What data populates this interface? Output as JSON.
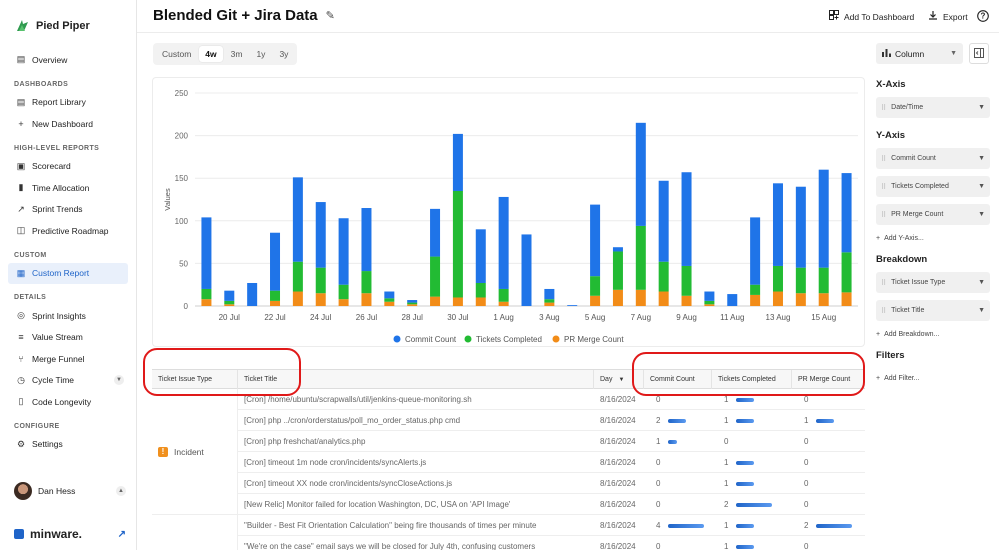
{
  "app": {
    "brand": "Pied Piper",
    "footer_brand": "minware."
  },
  "sidebar": {
    "items": [
      {
        "type": "item",
        "label": "Overview",
        "icon": "book-icon"
      },
      {
        "type": "section",
        "label": "DASHBOARDS"
      },
      {
        "type": "item",
        "label": "Report Library",
        "icon": "book-icon"
      },
      {
        "type": "item",
        "label": "New Dashboard",
        "icon": "plus-icon"
      },
      {
        "type": "section",
        "label": "HIGH-LEVEL REPORTS"
      },
      {
        "type": "item",
        "label": "Scorecard",
        "icon": "scorecard-icon"
      },
      {
        "type": "item",
        "label": "Time Allocation",
        "icon": "bar-chart-icon"
      },
      {
        "type": "item",
        "label": "Sprint Trends",
        "icon": "trend-icon"
      },
      {
        "type": "item",
        "label": "Predictive Roadmap",
        "icon": "roadmap-icon"
      },
      {
        "type": "section",
        "label": "CUSTOM"
      },
      {
        "type": "item",
        "label": "Custom Report",
        "icon": "table-icon",
        "active": true
      },
      {
        "type": "section",
        "label": "DETAILS"
      },
      {
        "type": "item",
        "label": "Sprint Insights",
        "icon": "sprint-icon"
      },
      {
        "type": "item",
        "label": "Value Stream",
        "icon": "value-stream-icon"
      },
      {
        "type": "item",
        "label": "Merge Funnel",
        "icon": "merge-icon"
      },
      {
        "type": "item",
        "label": "Cycle Time",
        "icon": "clock-icon",
        "expandable": true
      },
      {
        "type": "item",
        "label": "Code Longevity",
        "icon": "document-icon"
      },
      {
        "type": "section",
        "label": "CONFIGURE"
      },
      {
        "type": "item",
        "label": "Settings",
        "icon": "gear-icon"
      }
    ],
    "user": "Dan Hess"
  },
  "header": {
    "title": "Blended Git + Jira Data",
    "add_dashboard": "Add To Dashboard",
    "export": "Export"
  },
  "time_range": {
    "options": [
      "Custom",
      "4w",
      "3m",
      "1y",
      "3y"
    ],
    "selected": "4w"
  },
  "right_panel": {
    "viz_type": "Column",
    "xaxis_title": "X-Axis",
    "xaxis_fields": [
      "Date/Time"
    ],
    "yaxis_title": "Y-Axis",
    "yaxis_fields": [
      "Commit Count",
      "Tickets Completed",
      "PR Merge Count"
    ],
    "add_yaxis": "Add Y-Axis...",
    "breakdown_title": "Breakdown",
    "breakdown_fields": [
      "Ticket Issue Type",
      "Ticket Title"
    ],
    "add_breakdown": "Add Breakdown...",
    "filters_title": "Filters",
    "add_filter": "Add Filter..."
  },
  "chart_data": {
    "type": "bar",
    "stacked": true,
    "ylabel": "Values",
    "ylim": [
      0,
      250
    ],
    "yticks": [
      0,
      50,
      100,
      150,
      200,
      250
    ],
    "x_tick_labels": [
      "20 Jul",
      "22 Jul",
      "24 Jul",
      "26 Jul",
      "28 Jul",
      "30 Jul",
      "1 Aug",
      "3 Aug",
      "5 Aug",
      "7 Aug",
      "9 Aug",
      "11 Aug",
      "13 Aug",
      "15 Aug"
    ],
    "categories": [
      "19 Jul",
      "20 Jul",
      "21 Jul",
      "22 Jul",
      "23 Jul",
      "24 Jul",
      "25 Jul",
      "26 Jul",
      "27 Jul",
      "28 Jul",
      "29 Jul",
      "30 Jul",
      "31 Jul",
      "1 Aug",
      "2 Aug",
      "3 Aug",
      "4 Aug",
      "5 Aug",
      "6 Aug",
      "7 Aug",
      "8 Aug",
      "9 Aug",
      "10 Aug",
      "11 Aug",
      "12 Aug",
      "13 Aug",
      "14 Aug",
      "15 Aug",
      "16 Aug"
    ],
    "series": [
      {
        "name": "Commit Count",
        "color": "#1f74e8",
        "values": [
          84,
          12,
          27,
          68,
          99,
          77,
          78,
          74,
          8,
          3,
          56,
          67,
          63,
          108,
          84,
          12,
          1,
          84,
          5,
          121,
          95,
          110,
          11,
          14,
          79,
          97,
          95,
          115,
          93
        ]
      },
      {
        "name": "Tickets Completed",
        "color": "#22bb33",
        "values": [
          12,
          4,
          0,
          12,
          35,
          30,
          17,
          26,
          4,
          2,
          47,
          125,
          17,
          15,
          0,
          4,
          0,
          23,
          45,
          75,
          35,
          35,
          4,
          0,
          12,
          30,
          30,
          30,
          47
        ]
      },
      {
        "name": "PR Merge Count",
        "color": "#f28c18",
        "values": [
          8,
          2,
          0,
          6,
          17,
          15,
          8,
          15,
          5,
          2,
          11,
          10,
          10,
          5,
          0,
          4,
          0,
          12,
          19,
          19,
          17,
          12,
          2,
          0,
          13,
          17,
          15,
          15,
          16
        ]
      }
    ],
    "legend_position": "bottom"
  },
  "table": {
    "headers": [
      "Ticket Issue Type",
      "Ticket Title",
      "Day",
      "Commit Count",
      "Tickets Completed",
      "PR Merge Count"
    ],
    "group": "Incident",
    "rows": [
      {
        "title": "[Cron] /home/ubuntu/scrapwalls/util/jenkins-queue-monitoring.sh",
        "day": "8/16/2024",
        "commits": "0",
        "tickets": "1",
        "prs": "0",
        "cb": 0,
        "tb": 0.45,
        "pb": 0
      },
      {
        "title": "[Cron] php ../cron/orderstatus/poll_mo_order_status.php cmd",
        "day": "8/16/2024",
        "commits": "2",
        "tickets": "1",
        "prs": "1",
        "cb": 0.45,
        "tb": 0.45,
        "pb": 0.45
      },
      {
        "title": "[Cron] php freshchat/analytics.php",
        "day": "8/16/2024",
        "commits": "1",
        "tickets": "0",
        "prs": "0",
        "cb": 0.22,
        "tb": 0,
        "pb": 0
      },
      {
        "title": "[Cron] timeout 1m node cron/incidents/syncAlerts.js",
        "day": "8/16/2024",
        "commits": "0",
        "tickets": "1",
        "prs": "0",
        "cb": 0,
        "tb": 0.45,
        "pb": 0
      },
      {
        "title": "[Cron] timeout XX node cron/incidents/syncCloseActions.js",
        "day": "8/16/2024",
        "commits": "0",
        "tickets": "1",
        "prs": "0",
        "cb": 0,
        "tb": 0.45,
        "pb": 0
      },
      {
        "title": "[New Relic] Monitor failed for location Washington, DC, USA on 'API Image'",
        "day": "8/16/2024",
        "commits": "0",
        "tickets": "2",
        "prs": "0",
        "cb": 0,
        "tb": 0.9,
        "pb": 0
      },
      {
        "title": "\"Builder - Best Fit Orientation Calculation\" being fire thousands of times per minute",
        "day": "8/16/2024",
        "commits": "4",
        "tickets": "1",
        "prs": "2",
        "cb": 0.9,
        "tb": 0.45,
        "pb": 0.9
      },
      {
        "title": "\"We're on the case\" email says we will be closed for July 4th, confusing customers",
        "day": "8/16/2024",
        "commits": "0",
        "tickets": "1",
        "prs": "0",
        "cb": 0,
        "tb": 0.45,
        "pb": 0
      }
    ]
  }
}
